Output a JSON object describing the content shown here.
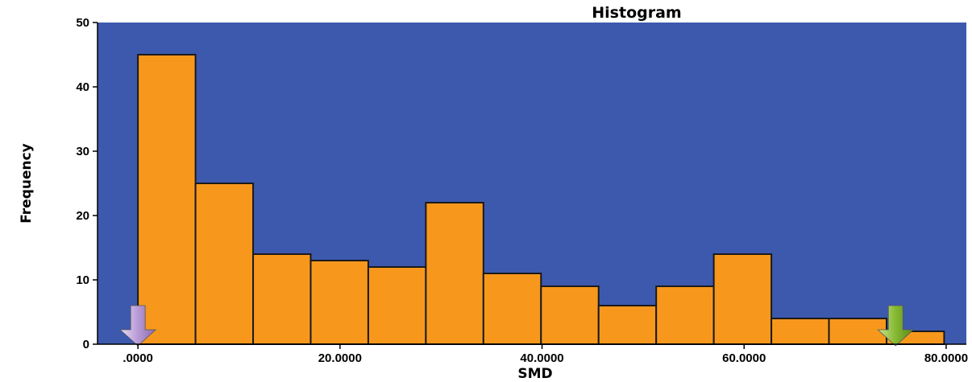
{
  "chart_data": {
    "type": "bar",
    "title": "Histogram",
    "xlabel": "SMD",
    "ylabel": "Frequency",
    "xlim": [
      -4,
      82
    ],
    "ylim": [
      0,
      50
    ],
    "bin_width": 5.7,
    "bin_start": 0,
    "values": [
      45,
      25,
      14,
      13,
      12,
      22,
      11,
      9,
      6,
      9,
      14,
      4,
      4,
      2
    ],
    "x_ticks": [
      0,
      20,
      40,
      60,
      80
    ],
    "x_tick_labels": [
      ".0000",
      "20.0000",
      "40.0000",
      "60.0000",
      "80.0000"
    ],
    "y_ticks": [
      0,
      10,
      20,
      30,
      40,
      50
    ],
    "y_tick_labels": [
      "0",
      "10",
      "20",
      "30",
      "40",
      "50"
    ],
    "grid": false,
    "markers": [
      {
        "x": 0,
        "color": "#c8b0e0",
        "icon": "down-arrow-icon"
      },
      {
        "x": 75,
        "color": "#8dbf3a",
        "icon": "down-arrow-icon"
      }
    ],
    "colors": {
      "plot_background": "#3d59ae",
      "bar_fill": "#f7981d",
      "bar_stroke": "#1a1a1a"
    }
  }
}
